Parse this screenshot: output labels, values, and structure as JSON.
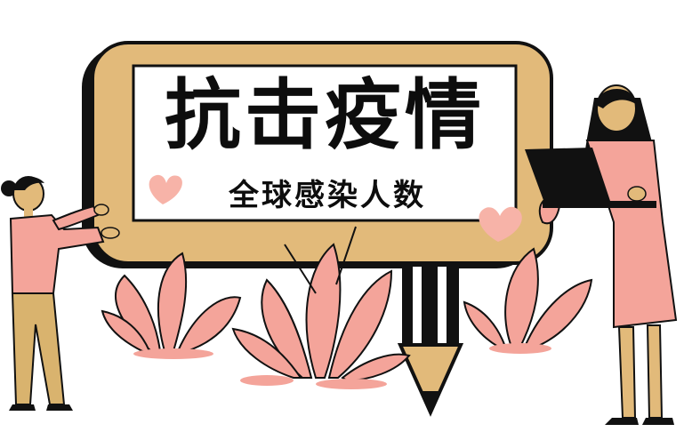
{
  "banner": {
    "title": "抗击疫情",
    "subtitle": "全球感染人数"
  },
  "colors": {
    "frame_tan": "#E2BA7A",
    "frame_shadow": "#111111",
    "panel_white": "#FFFFFF",
    "pink": "#F4A49A",
    "heart_pink": "#F7B3A8",
    "ink": "#0d0d0d"
  },
  "icons": [
    "heart-icon",
    "laptop-icon",
    "pencil-icon",
    "leaf-plant-icon"
  ]
}
